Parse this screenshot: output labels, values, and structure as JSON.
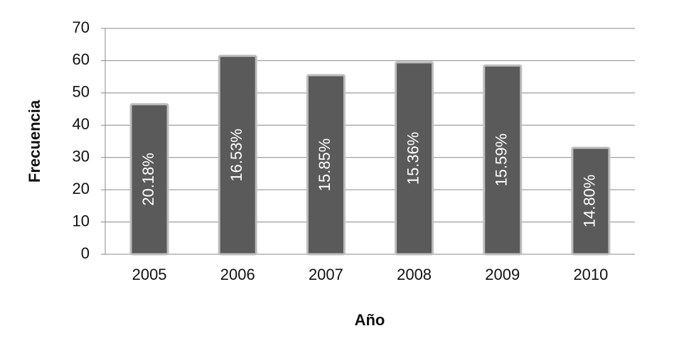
{
  "chart_data": {
    "type": "bar",
    "x_label": "Año",
    "y_label": "Frecuencia",
    "categories": [
      "2005",
      "2006",
      "2007",
      "2008",
      "2009",
      "2010"
    ],
    "values": [
      46.5,
      61.5,
      55.5,
      59.5,
      58.5,
      33
    ],
    "bar_annotations": [
      "20.18%",
      "16.53%",
      "15.85%",
      "15.36%",
      "15.59%",
      "14.80%"
    ],
    "color": "#5a5a5a",
    "ylim": [
      0,
      70
    ],
    "yticks": [
      0,
      10,
      20,
      30,
      40,
      50,
      60,
      70
    ],
    "grid": true
  }
}
